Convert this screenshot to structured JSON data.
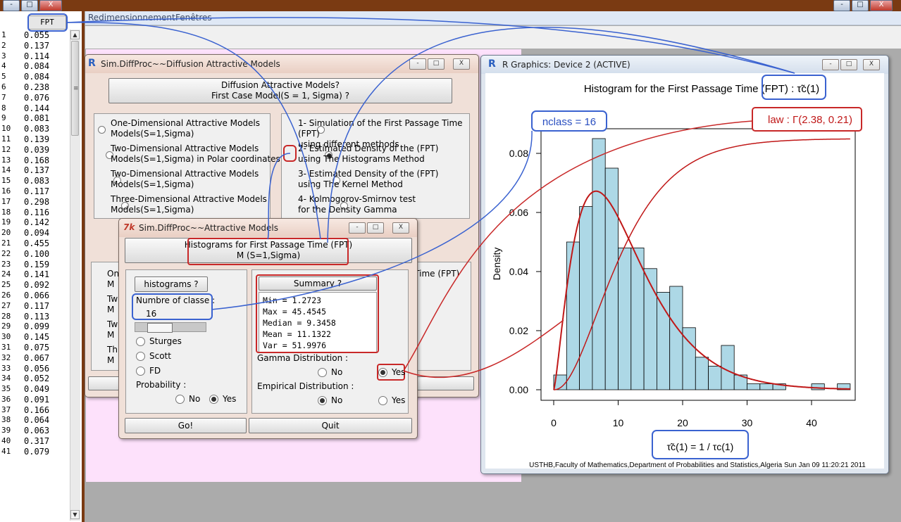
{
  "title_bar": {
    "minimize": "-",
    "restore": "□",
    "close": "X"
  },
  "menubar": {
    "items": [
      "Redimensionnement",
      "Fenêtres"
    ]
  },
  "data_editor": {
    "column_header": "FPT",
    "values": [
      "0.055",
      "0.137",
      "0.114",
      "0.084",
      "0.084",
      "0.238",
      "0.076",
      "0.144",
      "0.081",
      "0.083",
      "0.139",
      "0.039",
      "0.168",
      "0.137",
      "0.083",
      "0.117",
      "0.298",
      "0.116",
      "0.142",
      "0.094",
      "0.455",
      "0.100",
      "0.159",
      "0.141",
      "0.092",
      "0.066",
      "0.117",
      "0.113",
      "0.099",
      "0.145",
      "0.075",
      "0.067",
      "0.056",
      "0.052",
      "0.049",
      "0.091",
      "0.166",
      "0.064",
      "0.063",
      "0.317",
      "0.079"
    ]
  },
  "models_window": {
    "title": "Sim.DiffProc~~Diffusion Attractive Models",
    "header_button": "Diffusion Attractive Models?\nFirst Case Model(S = 1, Sigma) ?",
    "left_options": [
      "One-Dimensional Attractive Models\nModels(S=1,Sigma)",
      "Two-Dimensional Attractive Models\nModels(S=1,Sigma) in Polar coordinates",
      "Two-Dimensional Attractive Models\nModels(S=1,Sigma)",
      "Three-Dimensional Attractive Models\nModels(S=1,Sigma)"
    ],
    "right_options": [
      "1- Simulation of the First Passage Time (FPT)\nusing different methods",
      "2- Estimated Density of the (FPT)\nusing The Histograms Method",
      "3- Estimated Density of the (FPT)\nusing The Kernel Method",
      "4- Kolmogorov-Smirnov test\nfor the Density Gamma"
    ],
    "right_selected": 1,
    "partial_lower_text": "e Time (FPT)",
    "partial_lower_left": [
      "On\nM",
      "Tw\nM",
      "Tw\nM",
      "Th\nM"
    ]
  },
  "hist_window": {
    "title": "Sim.DiffProc~~Attractive Models",
    "header": "Histograms for First Passage Time (FPT)\nM (S=1,Sigma)",
    "histograms_button": "histograms ?",
    "nclass_label": "Numbre of classe :",
    "nclass_value": "16",
    "slider_fraction": 0.25,
    "breaks_options": [
      "Sturges",
      "Scott",
      "FD"
    ],
    "probability_label": "Probability :",
    "probability_options": [
      "No",
      "Yes"
    ],
    "probability_selected": "Yes",
    "summary_button": "Summary ?",
    "summary_lines": [
      "Min = 1.2723",
      "Max = 45.4545",
      "Median = 9.3458",
      "Mean = 11.1322",
      "Var = 51.9976"
    ],
    "gamma_label": "Gamma Distribution :",
    "gamma_options": [
      "No",
      "Yes"
    ],
    "gamma_selected": "Yes",
    "empirical_label": "Empirical Distribution :",
    "empirical_options": [
      "No",
      "Yes"
    ],
    "empirical_selected": "No",
    "go_button": "Go!",
    "quit_button": "Quit"
  },
  "graphics_window": {
    "title": "R Graphics: Device 2 (ACTIVE)",
    "footer": "USTHB,Faculty of Mathematics,Department of Probabilities and Statistics,Algeria Sun Jan 09 11:20:21 2011"
  },
  "annotations": {
    "nclass": "nclass = 16",
    "law": "law : Γ(2.38, 0.21)"
  },
  "chart_data": {
    "type": "bar",
    "title": "Histogram for the First Passage Time (FPT) : τ̃c(1)",
    "xlabel": "τ̃c(1) = 1 / τc(1)",
    "ylabel": "Density",
    "xlim": [
      0,
      46
    ],
    "ylim": [
      0,
      0.085
    ],
    "x_ticks": [
      0,
      10,
      20,
      30,
      40
    ],
    "y_ticks": [
      "0.00",
      "0.02",
      "0.04",
      "0.06",
      "0.08"
    ],
    "bin_width": 2,
    "bins_start": [
      0,
      2,
      4,
      6,
      8,
      10,
      12,
      14,
      16,
      18,
      20,
      22,
      24,
      26,
      28,
      30,
      32,
      34,
      36,
      38,
      40,
      42,
      44
    ],
    "density": [
      0.005,
      0.05,
      0.062,
      0.085,
      0.075,
      0.048,
      0.048,
      0.041,
      0.033,
      0.035,
      0.021,
      0.011,
      0.008,
      0.015,
      0.005,
      0.002,
      0.002,
      0.002,
      0,
      0,
      0.002,
      0,
      0.002
    ],
    "curves": [
      {
        "name": "gamma",
        "shape": 2.38,
        "rate": 0.21
      },
      {
        "name": "cumulative"
      }
    ],
    "grid": false,
    "colors": {
      "bars": "#add8e6",
      "curve": "#c01818"
    }
  }
}
